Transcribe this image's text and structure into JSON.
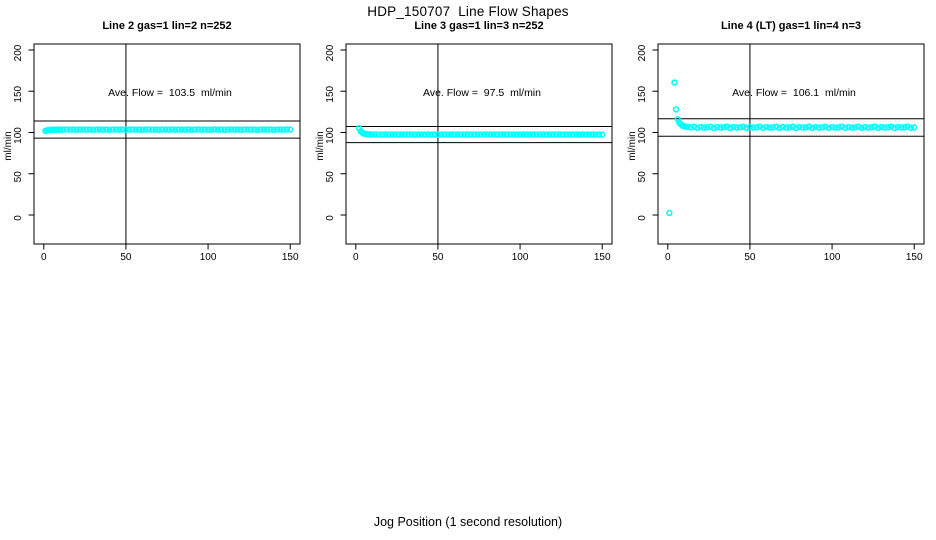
{
  "page": {
    "title": "HDP_150707  Line Flow Shapes",
    "x_axis_outer_label": "Jog Position (1 second resolution)"
  },
  "figure": {
    "marker_color": "#00FFFF",
    "marker_shape": "open-circle",
    "line_color": "#000000",
    "vline_x": 50,
    "axes": {
      "xticks": [
        0,
        50,
        100,
        150
      ],
      "yticks": [
        0,
        50,
        100,
        150,
        200
      ],
      "xlim": [
        0,
        150
      ],
      "ylim": [
        0,
        200
      ],
      "ylabel": "ml/min",
      "grid": false
    }
  },
  "chart_data": [
    {
      "type": "scatter",
      "title": "Line 2 gas=1 lin=2 n=252",
      "annotation": "Ave. Flow =  103.5  ml/min",
      "ave_flow_ml_min": 103.5,
      "ylabel": "ml/min",
      "xlabel": "",
      "ref_lines_y": {
        "high": 113.9,
        "low": 93.2
      },
      "vline_x": 50,
      "points": [
        [
          1,
          101.9
        ],
        [
          2,
          102.7
        ],
        [
          3,
          103.0
        ],
        [
          4,
          103.3
        ],
        [
          5,
          103.2
        ],
        [
          6,
          103.5
        ],
        [
          7,
          103.3
        ],
        [
          8,
          103.6
        ],
        [
          9,
          103.4
        ],
        [
          10,
          103.5
        ],
        [
          12,
          103.5
        ],
        [
          14,
          103.7
        ],
        [
          16,
          103.4
        ],
        [
          18,
          103.6
        ],
        [
          20,
          103.3
        ],
        [
          22,
          103.5
        ],
        [
          24,
          103.7
        ],
        [
          26,
          103.4
        ],
        [
          28,
          103.6
        ],
        [
          30,
          103.3
        ],
        [
          32,
          103.5
        ],
        [
          34,
          103.7
        ],
        [
          36,
          103.4
        ],
        [
          38,
          103.6
        ],
        [
          40,
          103.3
        ],
        [
          42,
          103.5
        ],
        [
          44,
          103.7
        ],
        [
          46,
          103.4
        ],
        [
          48,
          103.6
        ],
        [
          50,
          103.3
        ],
        [
          52,
          103.5
        ],
        [
          54,
          103.7
        ],
        [
          56,
          103.4
        ],
        [
          58,
          103.6
        ],
        [
          60,
          103.3
        ],
        [
          62,
          103.5
        ],
        [
          64,
          103.7
        ],
        [
          66,
          103.4
        ],
        [
          68,
          103.6
        ],
        [
          70,
          103.3
        ],
        [
          72,
          103.5
        ],
        [
          74,
          103.7
        ],
        [
          76,
          103.4
        ],
        [
          78,
          103.6
        ],
        [
          80,
          103.3
        ],
        [
          82,
          103.5
        ],
        [
          84,
          103.7
        ],
        [
          86,
          103.4
        ],
        [
          88,
          103.6
        ],
        [
          90,
          103.3
        ],
        [
          92,
          103.5
        ],
        [
          94,
          103.7
        ],
        [
          96,
          103.4
        ],
        [
          98,
          103.6
        ],
        [
          100,
          103.3
        ],
        [
          102,
          103.5
        ],
        [
          104,
          103.7
        ],
        [
          106,
          103.4
        ],
        [
          108,
          103.6
        ],
        [
          110,
          103.3
        ],
        [
          112,
          103.5
        ],
        [
          114,
          103.7
        ],
        [
          116,
          103.4
        ],
        [
          118,
          103.6
        ],
        [
          120,
          103.3
        ],
        [
          122,
          103.5
        ],
        [
          124,
          103.7
        ],
        [
          126,
          103.4
        ],
        [
          128,
          103.6
        ],
        [
          130,
          103.3
        ],
        [
          132,
          103.5
        ],
        [
          134,
          103.7
        ],
        [
          136,
          103.4
        ],
        [
          138,
          103.6
        ],
        [
          140,
          103.3
        ],
        [
          142,
          103.5
        ],
        [
          144,
          103.7
        ],
        [
          146,
          103.4
        ],
        [
          148,
          103.6
        ],
        [
          150,
          103.5
        ]
      ]
    },
    {
      "type": "scatter",
      "title": "Line 3 gas=1 lin=3 n=252",
      "annotation": "Ave. Flow =  97.5  ml/min",
      "ave_flow_ml_min": 97.5,
      "ylabel": "ml/min",
      "xlabel": "",
      "ref_lines_y": {
        "high": 107.3,
        "low": 87.8
      },
      "vline_x": 50,
      "points": [
        [
          2,
          105.3
        ],
        [
          3,
          101.4
        ],
        [
          4,
          99.7
        ],
        [
          5,
          98.8
        ],
        [
          6,
          98.2
        ],
        [
          7,
          97.9
        ],
        [
          8,
          97.8
        ],
        [
          9,
          97.6
        ],
        [
          10,
          97.7
        ],
        [
          12,
          97.5
        ],
        [
          14,
          97.7
        ],
        [
          16,
          97.3
        ],
        [
          18,
          97.6
        ],
        [
          20,
          97.4
        ],
        [
          22,
          97.5
        ],
        [
          24,
          97.7
        ],
        [
          26,
          97.3
        ],
        [
          28,
          97.6
        ],
        [
          30,
          97.4
        ],
        [
          32,
          97.5
        ],
        [
          34,
          97.7
        ],
        [
          36,
          97.3
        ],
        [
          38,
          97.6
        ],
        [
          40,
          97.4
        ],
        [
          42,
          97.5
        ],
        [
          44,
          97.7
        ],
        [
          46,
          97.3
        ],
        [
          48,
          97.6
        ],
        [
          50,
          97.4
        ],
        [
          52,
          97.5
        ],
        [
          54,
          97.7
        ],
        [
          56,
          97.3
        ],
        [
          58,
          97.6
        ],
        [
          60,
          97.4
        ],
        [
          62,
          97.5
        ],
        [
          64,
          97.7
        ],
        [
          66,
          97.3
        ],
        [
          68,
          97.6
        ],
        [
          70,
          97.4
        ],
        [
          72,
          97.5
        ],
        [
          74,
          97.7
        ],
        [
          76,
          97.3
        ],
        [
          78,
          97.6
        ],
        [
          80,
          97.4
        ],
        [
          82,
          97.5
        ],
        [
          84,
          97.7
        ],
        [
          86,
          97.3
        ],
        [
          88,
          97.6
        ],
        [
          90,
          97.4
        ],
        [
          92,
          97.5
        ],
        [
          94,
          97.7
        ],
        [
          96,
          97.3
        ],
        [
          98,
          97.6
        ],
        [
          100,
          97.4
        ],
        [
          102,
          97.5
        ],
        [
          104,
          97.7
        ],
        [
          106,
          97.3
        ],
        [
          108,
          97.6
        ],
        [
          110,
          97.4
        ],
        [
          112,
          97.5
        ],
        [
          114,
          97.7
        ],
        [
          116,
          97.3
        ],
        [
          118,
          97.6
        ],
        [
          120,
          97.4
        ],
        [
          122,
          97.5
        ],
        [
          124,
          97.7
        ],
        [
          126,
          97.3
        ],
        [
          128,
          97.6
        ],
        [
          130,
          97.4
        ],
        [
          132,
          97.5
        ],
        [
          134,
          97.7
        ],
        [
          136,
          97.3
        ],
        [
          138,
          97.6
        ],
        [
          140,
          97.4
        ],
        [
          142,
          97.5
        ],
        [
          144,
          97.7
        ],
        [
          146,
          97.3
        ],
        [
          148,
          97.6
        ],
        [
          150,
          97.5
        ]
      ]
    },
    {
      "type": "scatter",
      "title": "Line 4 (LT) gas=1 lin=4 n=3",
      "annotation": "Ave. Flow =  106.1  ml/min",
      "ave_flow_ml_min": 106.1,
      "ylabel": "ml/min",
      "xlabel": "",
      "ref_lines_y": {
        "high": 116.7,
        "low": 95.5
      },
      "vline_x": 50,
      "points": [
        [
          1,
          2.5
        ],
        [
          4,
          160.5
        ],
        [
          5,
          128.0
        ],
        [
          6,
          116.0
        ],
        [
          7,
          112.0
        ],
        [
          8,
          109.8
        ],
        [
          9,
          108.3
        ],
        [
          10,
          107.4
        ],
        [
          11,
          107.0
        ],
        [
          12,
          106.8
        ],
        [
          14,
          106.3
        ],
        [
          16,
          107.0
        ],
        [
          18,
          105.6
        ],
        [
          20,
          106.6
        ],
        [
          22,
          105.9
        ],
        [
          24,
          106.3
        ],
        [
          26,
          107.0
        ],
        [
          28,
          105.6
        ],
        [
          30,
          106.6
        ],
        [
          32,
          105.9
        ],
        [
          34,
          106.3
        ],
        [
          36,
          107.0
        ],
        [
          38,
          105.6
        ],
        [
          40,
          106.6
        ],
        [
          42,
          105.9
        ],
        [
          44,
          106.3
        ],
        [
          46,
          107.0
        ],
        [
          48,
          105.6
        ],
        [
          50,
          106.6
        ],
        [
          52,
          105.9
        ],
        [
          54,
          106.3
        ],
        [
          56,
          107.0
        ],
        [
          58,
          105.6
        ],
        [
          60,
          106.6
        ],
        [
          62,
          105.9
        ],
        [
          64,
          106.3
        ],
        [
          66,
          107.0
        ],
        [
          68,
          105.6
        ],
        [
          70,
          106.6
        ],
        [
          72,
          105.9
        ],
        [
          74,
          106.3
        ],
        [
          76,
          107.0
        ],
        [
          78,
          105.6
        ],
        [
          80,
          106.6
        ],
        [
          82,
          105.9
        ],
        [
          84,
          106.3
        ],
        [
          86,
          107.0
        ],
        [
          88,
          105.6
        ],
        [
          90,
          106.6
        ],
        [
          92,
          105.9
        ],
        [
          94,
          106.3
        ],
        [
          96,
          107.0
        ],
        [
          98,
          105.6
        ],
        [
          100,
          106.6
        ],
        [
          102,
          105.9
        ],
        [
          104,
          106.3
        ],
        [
          106,
          107.0
        ],
        [
          108,
          105.6
        ],
        [
          110,
          106.6
        ],
        [
          112,
          105.9
        ],
        [
          114,
          106.3
        ],
        [
          116,
          107.0
        ],
        [
          118,
          105.6
        ],
        [
          120,
          106.6
        ],
        [
          122,
          105.9
        ],
        [
          124,
          106.3
        ],
        [
          126,
          107.0
        ],
        [
          128,
          105.6
        ],
        [
          130,
          106.6
        ],
        [
          132,
          105.9
        ],
        [
          134,
          106.3
        ],
        [
          136,
          107.0
        ],
        [
          138,
          105.6
        ],
        [
          140,
          106.6
        ],
        [
          142,
          105.9
        ],
        [
          144,
          106.3
        ],
        [
          146,
          107.0
        ],
        [
          148,
          105.6
        ],
        [
          150,
          106.1
        ]
      ]
    }
  ]
}
